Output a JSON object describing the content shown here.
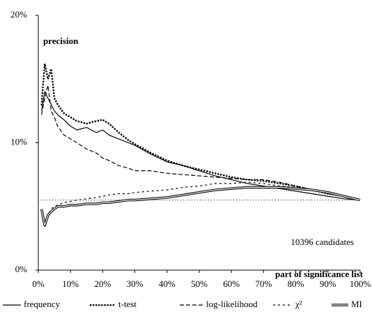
{
  "chart_data": {
    "type": "line",
    "annotations": [
      "precision",
      "10396 candidates"
    ],
    "xlabel": "part of significance list",
    "x": [
      1,
      2,
      3,
      4,
      5,
      6,
      8,
      10,
      12,
      15,
      18,
      20,
      22,
      25,
      28,
      30,
      35,
      40,
      45,
      50,
      55,
      60,
      65,
      70,
      75,
      80,
      85,
      90,
      95,
      100
    ],
    "series": [
      {
        "name": "frequency",
        "color": "#000000",
        "style": "solid",
        "values": [
          12.5,
          14,
          13.5,
          13,
          12.5,
          12.2,
          11.8,
          11.3,
          11,
          11.2,
          10.8,
          11,
          10.6,
          10.3,
          10,
          9.8,
          9.1,
          8.5,
          8.2,
          7.8,
          7.4,
          7.1,
          6.8,
          6.6,
          6.4,
          6.2,
          6,
          5.8,
          5.6,
          5.5
        ]
      },
      {
        "name": "t-test",
        "color": "#000000",
        "style": "dotted",
        "values": [
          13,
          16.2,
          15,
          15.8,
          13.5,
          13,
          12.3,
          12,
          11.7,
          11.5,
          11.7,
          11.8,
          11.5,
          10.8,
          10.2,
          9.9,
          9.2,
          8.6,
          8.2,
          7.9,
          7.6,
          7.3,
          7.1,
          7,
          6.8,
          6.6,
          6.3,
          6,
          5.8,
          5.5
        ]
      },
      {
        "name": "log-likelihood",
        "color": "#000000",
        "style": "dashed",
        "values": [
          12.2,
          13.5,
          14.5,
          12.5,
          12,
          11.3,
          10.6,
          10.3,
          10,
          9.5,
          9.2,
          8.8,
          8.6,
          8.2,
          8,
          7.8,
          7.8,
          7.6,
          7.5,
          7.4,
          7.3,
          7.2,
          7.1,
          7.1,
          6.9,
          6.6,
          6.3,
          6,
          5.8,
          5.5
        ]
      },
      {
        "name": "χ²",
        "color": "#000000",
        "style": "short-dashed",
        "values": [
          4.5,
          3.8,
          4.2,
          4.8,
          5,
          5.1,
          5.3,
          5.4,
          5.5,
          5.6,
          5.7,
          5.8,
          5.9,
          6,
          6,
          6.1,
          6.2,
          6.3,
          6.5,
          6.6,
          6.8,
          6.8,
          6.9,
          6.8,
          6.6,
          6.5,
          6.3,
          6,
          5.8,
          5.5
        ]
      },
      {
        "name": "MI",
        "color": "#000000",
        "style": "double",
        "values": [
          4.8,
          3.5,
          4.3,
          4.6,
          4.8,
          5,
          5,
          5.1,
          5.1,
          5.2,
          5.2,
          5.3,
          5.3,
          5.4,
          5.5,
          5.5,
          5.6,
          5.7,
          5.9,
          6.1,
          6.3,
          6.4,
          6.5,
          6.5,
          6.5,
          6.4,
          6.3,
          6.1,
          5.8,
          5.5
        ]
      }
    ],
    "baseline": 5.5,
    "xlim": [
      0,
      100
    ],
    "xticks": [
      {
        "value": 0,
        "label": "0%"
      },
      {
        "value": 10,
        "label": "10%"
      },
      {
        "value": 20,
        "label": "20%"
      },
      {
        "value": 30,
        "label": "30%"
      },
      {
        "value": 40,
        "label": "40%"
      },
      {
        "value": 50,
        "label": "50%"
      },
      {
        "value": 60,
        "label": "60%"
      },
      {
        "value": 70,
        "label": "70%"
      },
      {
        "value": 80,
        "label": "80%"
      },
      {
        "value": 90,
        "label": "90%"
      },
      {
        "value": 100,
        "label": "100%"
      }
    ],
    "ylim": [
      0,
      20
    ],
    "yticks": [
      {
        "value": 0,
        "label": "0%"
      },
      {
        "value": 10,
        "label": "10%"
      },
      {
        "value": 20,
        "label": "20%"
      }
    ],
    "grid": false
  }
}
